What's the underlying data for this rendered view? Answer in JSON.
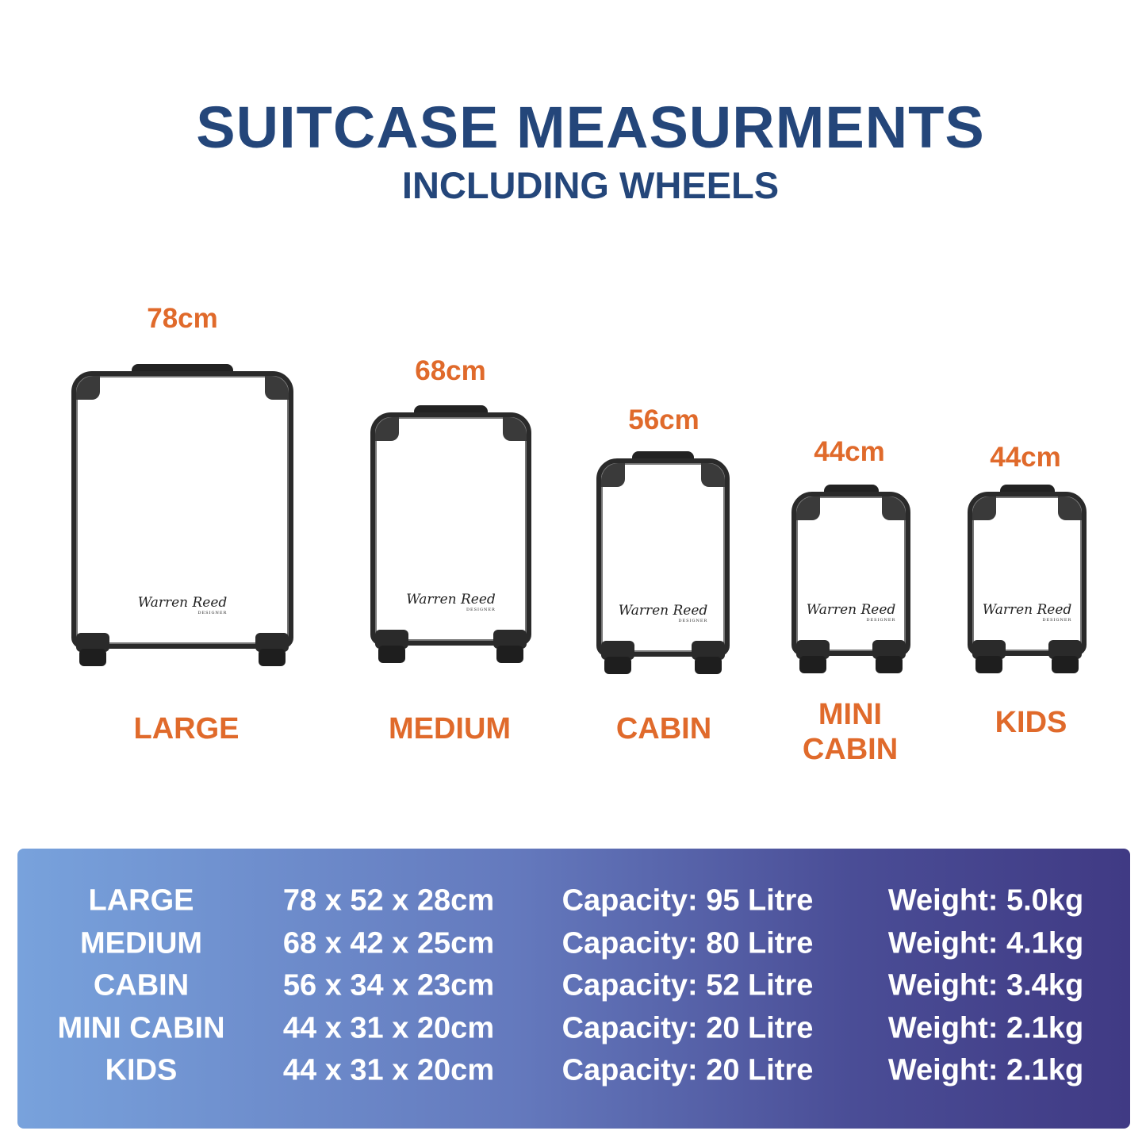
{
  "header": {
    "title": "SUITCASE MEASURMENTS",
    "subtitle": "INCLUDING WHEELS"
  },
  "colors": {
    "title": "#24467a",
    "accent": "#e06a2b",
    "panel_gradient": [
      "#78a2dc",
      "#403a84"
    ]
  },
  "suitcases": [
    {
      "height": "78cm",
      "name": "LARGE",
      "logo": "Warren Reed",
      "logo_sub": "DESIGNER"
    },
    {
      "height": "68cm",
      "name": "MEDIUM",
      "logo": "Warren Reed",
      "logo_sub": "DESIGNER"
    },
    {
      "height": "56cm",
      "name": "CABIN",
      "logo": "Warren Reed",
      "logo_sub": "DESIGNER"
    },
    {
      "height": "44cm",
      "name_line1": "MINI",
      "name_line2": "CABIN",
      "logo": "Warren Reed",
      "logo_sub": "DESIGNER"
    },
    {
      "height": "44cm",
      "name": "KIDS",
      "logo": "Warren Reed",
      "logo_sub": "DESIGNER"
    }
  ],
  "table": {
    "rows": [
      {
        "size": "LARGE",
        "dims": "78 x 52 x 28cm",
        "capacity": "Capacity: 95 Litre",
        "weight": "Weight: 5.0kg"
      },
      {
        "size": "MEDIUM",
        "dims": "68 x 42 x 25cm",
        "capacity": "Capacity: 80 Litre",
        "weight": "Weight: 4.1kg"
      },
      {
        "size": "CABIN",
        "dims": "56 x 34 x 23cm",
        "capacity": "Capacity: 52 Litre",
        "weight": "Weight: 3.4kg"
      },
      {
        "size": "MINI CABIN",
        "dims": "44 x 31 x 20cm",
        "capacity": "Capacity: 20 Litre",
        "weight": "Weight: 2.1kg"
      },
      {
        "size": "KIDS",
        "dims": "44 x 31 x 20cm",
        "capacity": "Capacity: 20 Litre",
        "weight": "Weight: 2.1kg"
      }
    ]
  }
}
